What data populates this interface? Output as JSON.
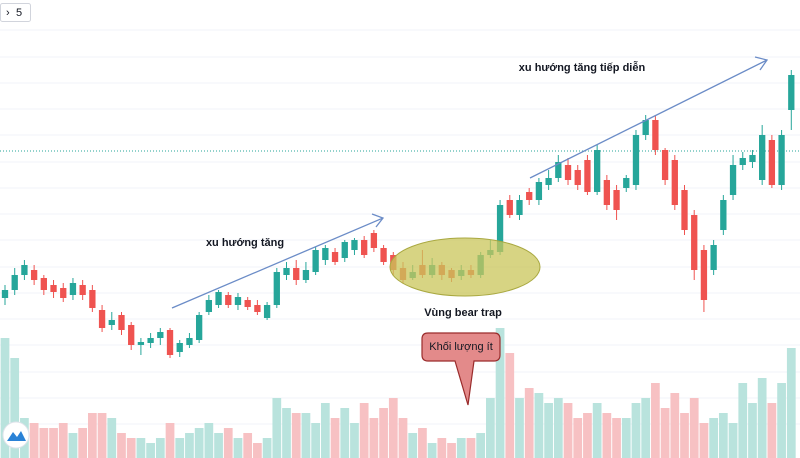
{
  "chart_data": {
    "type": "candlestick",
    "interval": "5",
    "ylim": [
      0,
      458
    ],
    "y2lim": [
      0,
      458
    ],
    "up_color": "#26a69a",
    "down_color": "#ef5350",
    "up_volume_color": "#b9e3dd",
    "down_volume_color": "#f7c1c3",
    "open": [
      160,
      168,
      183,
      188,
      180,
      173,
      170,
      163,
      173,
      168,
      148,
      133,
      143,
      133,
      113,
      115,
      120,
      128,
      106,
      113,
      118,
      146,
      153,
      163,
      153,
      158,
      153,
      140,
      153,
      183,
      190,
      178,
      186,
      198,
      206,
      200,
      208,
      218,
      225,
      210,
      203,
      190,
      180,
      193,
      183,
      193,
      188,
      182,
      188,
      183,
      203,
      206,
      258,
      243,
      266,
      258,
      273,
      280,
      293,
      288,
      298,
      266,
      278,
      268,
      270,
      273,
      323,
      338,
      308,
      298,
      268,
      243,
      208,
      188,
      228,
      263,
      293,
      296,
      278,
      318,
      273,
      348
    ],
    "close": [
      168,
      183,
      193,
      178,
      168,
      166,
      160,
      175,
      163,
      150,
      130,
      138,
      128,
      113,
      116,
      120,
      126,
      103,
      115,
      120,
      143,
      158,
      166,
      153,
      161,
      151,
      146,
      153,
      186,
      190,
      178,
      188,
      208,
      210,
      196,
      216,
      218,
      203,
      210,
      196,
      188,
      178,
      186,
      183,
      193,
      183,
      180,
      188,
      183,
      203,
      208,
      253,
      243,
      258,
      258,
      276,
      280,
      296,
      278,
      273,
      266,
      308,
      253,
      248,
      280,
      323,
      338,
      308,
      278,
      253,
      228,
      188,
      158,
      213,
      258,
      293,
      300,
      303,
      323,
      273,
      323,
      383
    ],
    "high": [
      173,
      190,
      198,
      193,
      183,
      178,
      175,
      180,
      178,
      173,
      153,
      146,
      146,
      136,
      120,
      125,
      130,
      130,
      118,
      125,
      146,
      163,
      168,
      166,
      165,
      161,
      158,
      156,
      190,
      196,
      198,
      196,
      211,
      213,
      210,
      218,
      220,
      222,
      228,
      213,
      206,
      196,
      193,
      208,
      200,
      196,
      190,
      193,
      193,
      206,
      218,
      258,
      263,
      263,
      270,
      280,
      288,
      303,
      300,
      293,
      303,
      313,
      283,
      273,
      283,
      328,
      343,
      343,
      310,
      303,
      273,
      248,
      213,
      218,
      263,
      303,
      306,
      308,
      333,
      323,
      328,
      388
    ],
    "low": [
      153,
      163,
      178,
      173,
      163,
      160,
      156,
      158,
      158,
      146,
      126,
      128,
      123,
      108,
      103,
      110,
      113,
      100,
      101,
      110,
      115,
      143,
      150,
      150,
      148,
      148,
      143,
      138,
      150,
      178,
      173,
      175,
      183,
      193,
      193,
      196,
      203,
      200,
      206,
      193,
      183,
      175,
      178,
      180,
      180,
      178,
      176,
      178,
      180,
      180,
      200,
      203,
      240,
      238,
      253,
      253,
      268,
      276,
      273,
      268,
      263,
      263,
      248,
      238,
      266,
      268,
      318,
      303,
      273,
      248,
      223,
      178,
      146,
      183,
      223,
      258,
      288,
      290,
      273,
      270,
      268,
      328
    ],
    "volume": [
      120,
      100,
      40,
      35,
      30,
      30,
      35,
      25,
      30,
      45,
      45,
      40,
      25,
      20,
      20,
      15,
      20,
      35,
      20,
      25,
      30,
      35,
      25,
      30,
      20,
      25,
      15,
      20,
      60,
      50,
      45,
      45,
      35,
      55,
      40,
      50,
      35,
      55,
      40,
      50,
      60,
      40,
      25,
      30,
      15,
      20,
      15,
      20,
      20,
      25,
      60,
      130,
      105,
      60,
      70,
      65,
      55,
      60,
      55,
      40,
      45,
      55,
      45,
      40,
      40,
      55,
      60,
      75,
      50,
      65,
      45,
      60,
      35,
      40,
      45,
      35,
      75,
      55,
      80,
      55,
      75,
      110
    ],
    "annotations": [
      "xu hướng tăng",
      "xu hướng tăng tiếp diễn",
      "Vùng bear trap",
      "Khối lượng ít"
    ]
  }
}
